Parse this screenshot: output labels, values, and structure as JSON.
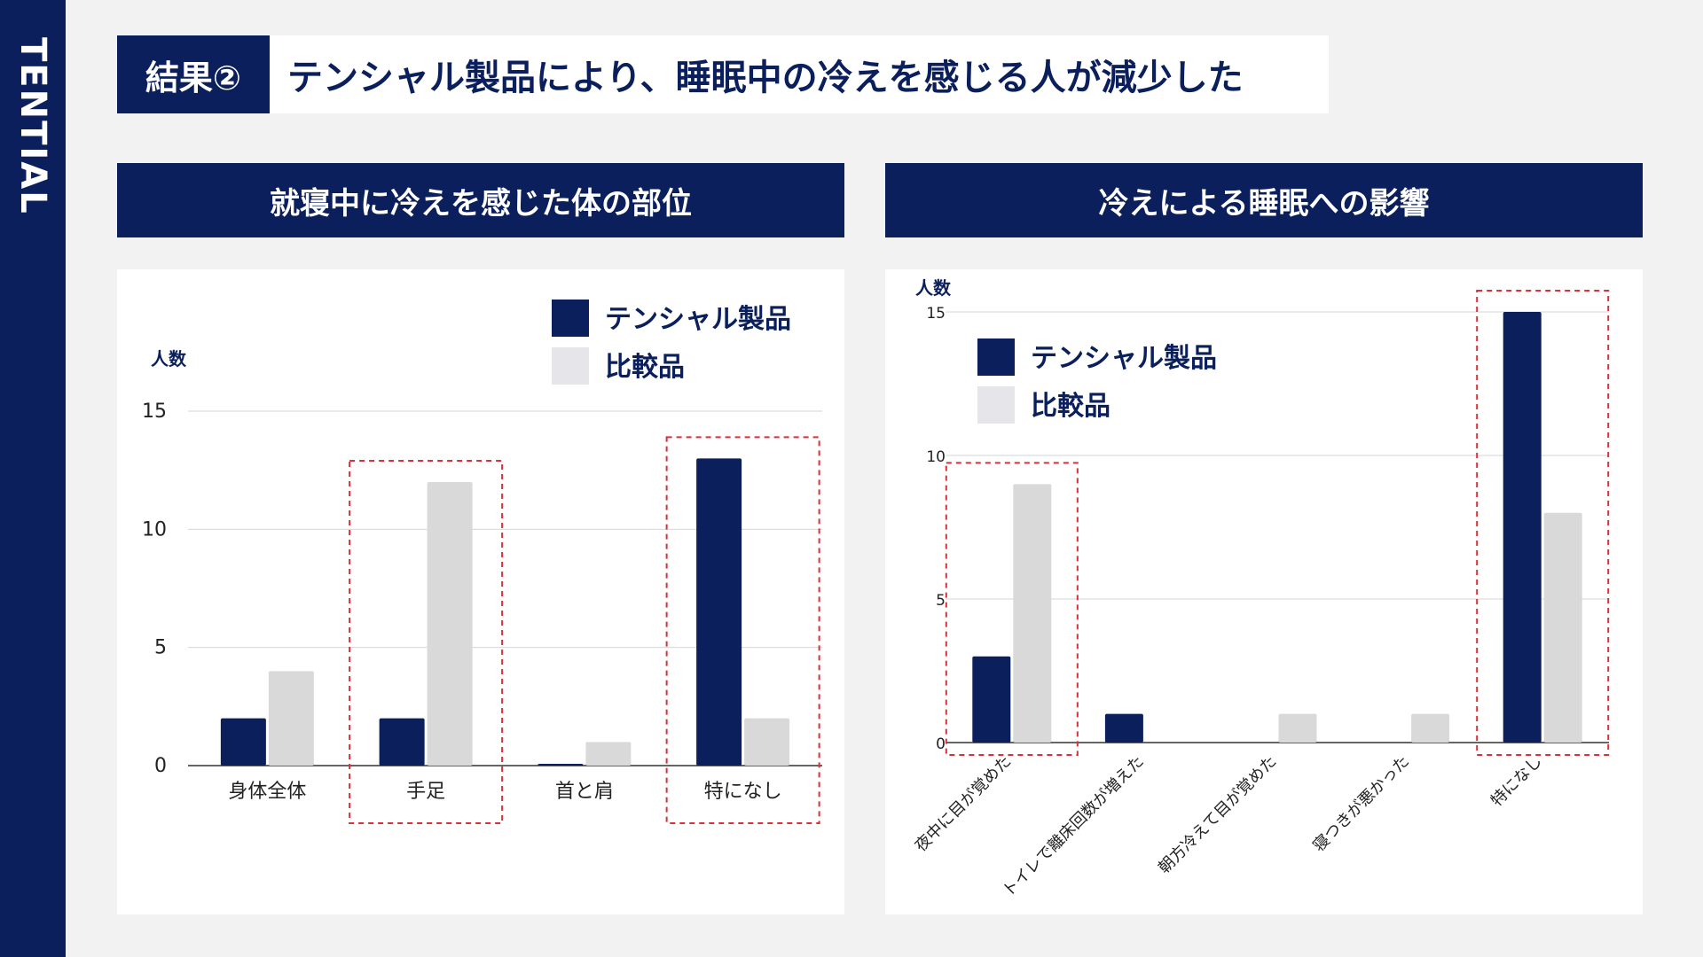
{
  "brand": "TENTIAL",
  "header": {
    "tag": "結果②",
    "title": "テンシャル製品により、睡眠中の冷えを感じる人が減少した"
  },
  "colors": {
    "primary": "#0a1f5c",
    "secondary": "#d9d9d9",
    "highlight": "#d9303a"
  },
  "panels": {
    "left_title": "就寝中に冷えを感じた体の部位",
    "right_title": "冷えによる睡眠への影響"
  },
  "chart_data": [
    {
      "type": "bar",
      "title": "就寝中に冷えを感じた体の部位",
      "ylabel": "人数",
      "xlabel": "",
      "ylim": [
        0,
        15
      ],
      "yticks": [
        0,
        5,
        10,
        15
      ],
      "categories": [
        "身体全体",
        "手足",
        "首と肩",
        "特になし"
      ],
      "series": [
        {
          "name": "テンシャル製品",
          "values": [
            2,
            2,
            0,
            13
          ]
        },
        {
          "name": "比較品",
          "values": [
            4,
            12,
            1,
            2
          ]
        }
      ],
      "highlighted": [
        "手足",
        "特になし"
      ],
      "legend": "top-right"
    },
    {
      "type": "bar",
      "title": "冷えによる睡眠への影響",
      "ylabel": "人数",
      "xlabel": "",
      "ylim": [
        0,
        15
      ],
      "yticks": [
        0,
        5,
        10,
        15
      ],
      "categories": [
        "夜中に目が覚めた",
        "トイレで離床回数が増えた",
        "朝方冷えて目が覚めた",
        "寝つきが悪かった",
        "特になし"
      ],
      "series": [
        {
          "name": "テンシャル製品",
          "values": [
            3,
            1,
            0,
            0,
            15
          ]
        },
        {
          "name": "比較品",
          "values": [
            9,
            0,
            1,
            1,
            8
          ]
        }
      ],
      "highlighted": [
        "夜中に目が覚めた",
        "特になし"
      ],
      "legend": "top-left"
    }
  ]
}
